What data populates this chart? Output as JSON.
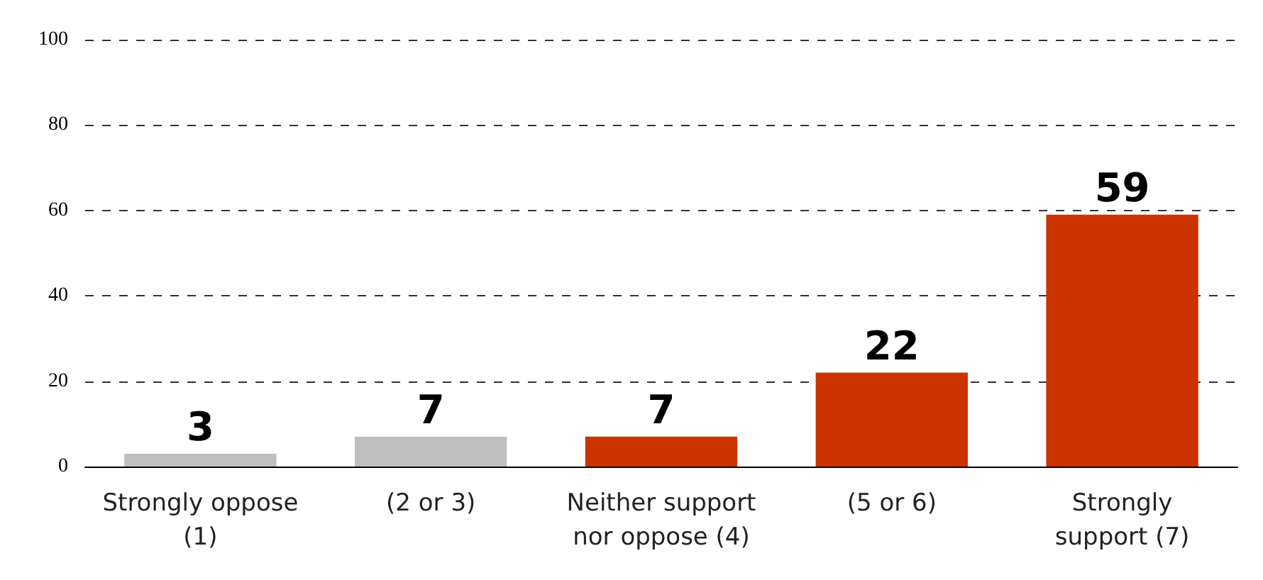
{
  "chart_data": {
    "type": "bar",
    "categories": [
      "Strongly oppose\n(1)",
      "(2 or 3)",
      "Neither support\nnor oppose (4)",
      "(5 or 6)",
      "Strongly\nsupport (7)"
    ],
    "values": [
      3,
      7,
      7,
      22,
      59
    ],
    "colors": [
      "#bfbfbf",
      "#bfbfbf",
      "#cc3300",
      "#cc3300",
      "#cc3300"
    ],
    "ylim": [
      0,
      100
    ],
    "yticks": [
      0,
      20,
      40,
      60,
      80,
      100
    ],
    "grid": "y",
    "data_labels": true
  }
}
